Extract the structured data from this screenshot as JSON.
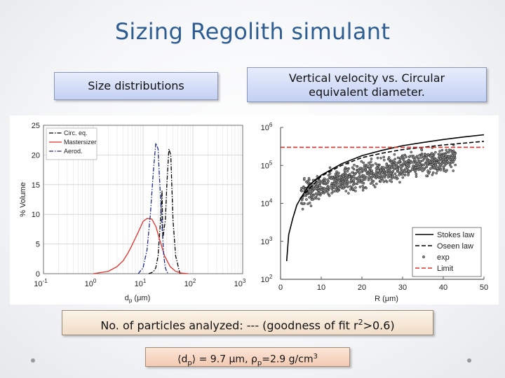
{
  "slide": {
    "title": "Sizing Regolith simulant",
    "box_left": "Size distributions",
    "box_right_line1": "Vertical velocity vs. Circular",
    "box_right_line2": "equivalent diameter.",
    "box_particles_prefix": "No. of particles analyzed: --- (goodness of fit r",
    "box_particles_sup": "2",
    "box_particles_suffix": ">0.6)",
    "formula_lhs_open": "⟨d",
    "formula_lhs_sub": "p",
    "formula_lhs_close": "⟩ = 9.7 μm,  ρ",
    "formula_rho_sub": "p",
    "formula_rhs": "=2.9 g/cm",
    "formula_rhs_sup": "3"
  },
  "chart_data": [
    {
      "type": "line",
      "ylabel": "% Volume",
      "xlabel_main": "d",
      "xlabel_sub": "p",
      "xlabel_unit": " (μm)",
      "xscale": "log",
      "xlim": [
        0.1,
        1000
      ],
      "ylim": [
        0,
        25
      ],
      "x_tick_bases": [
        "10",
        "10",
        "10",
        "10",
        "10"
      ],
      "x_tick_exps": [
        "-1",
        "0",
        "1",
        "2",
        "3"
      ],
      "x_tick_values": [
        0.1,
        1,
        10,
        100,
        1000
      ],
      "y_ticks": [
        0,
        5,
        10,
        15,
        20,
        25
      ],
      "legend": [
        "Circ. eq.",
        "Mastersizer",
        "Aerod."
      ],
      "legend_position": "top-left",
      "grid": true,
      "series": [
        {
          "name": "Circ. eq.",
          "color": "#000000",
          "dash": "dashdot",
          "x": [
            13,
            16,
            18,
            20,
            22,
            24,
            25,
            28,
            30,
            33,
            36,
            38,
            40,
            45,
            55
          ],
          "y": [
            0,
            0.3,
            1,
            3,
            8,
            14,
            6,
            9,
            15,
            21,
            20,
            14,
            9,
            3,
            0
          ]
        },
        {
          "name": "Mastersizer",
          "color": "#e0302a",
          "dash": "solid",
          "x": [
            1,
            2,
            3,
            4,
            5,
            6,
            8,
            10,
            12,
            15,
            18,
            22,
            27,
            35,
            45,
            60,
            80
          ],
          "y": [
            0,
            0.4,
            1.2,
            2.2,
            3.5,
            4.8,
            7,
            8.8,
            9.3,
            9.2,
            8,
            5.5,
            3,
            1.2,
            0.4,
            0.1,
            0
          ]
        },
        {
          "name": "Aerod.",
          "color": "#1f2a8a",
          "dash": "dashdot",
          "x": [
            8,
            10,
            12,
            14,
            16,
            18,
            20,
            22,
            24,
            26,
            28,
            30,
            33
          ],
          "y": [
            0,
            1,
            4,
            10,
            17,
            22,
            21,
            14,
            8,
            3,
            1,
            0.3,
            0
          ]
        }
      ]
    },
    {
      "type": "scatter",
      "xlabel_main": "R",
      "xlabel_unit": " (μm)",
      "yscale": "log",
      "xlim": [
        0,
        50
      ],
      "ylim": [
        100,
        1000000
      ],
      "x_ticks": [
        0,
        10,
        20,
        30,
        40,
        50
      ],
      "y_tick_bases": [
        "10",
        "10",
        "10",
        "10",
        "10"
      ],
      "y_tick_exps": [
        "2",
        "3",
        "4",
        "5",
        "6"
      ],
      "y_tick_values": [
        100,
        1000,
        10000,
        100000,
        1000000
      ],
      "legend": [
        "Stokes law",
        "Oseen law",
        "exp",
        "Limit"
      ],
      "legend_position": "bottom-right",
      "grid": false,
      "series": [
        {
          "name": "Stokes law",
          "color": "#000000",
          "dash": "solid",
          "x": [
            1.5,
            2,
            3,
            4,
            5,
            7,
            10,
            15,
            20,
            25,
            30,
            35,
            40,
            45,
            50
          ],
          "y": [
            300,
            1500,
            4000,
            9000,
            14000,
            30000,
            55000,
            110000,
            180000,
            250000,
            330000,
            400000,
            480000,
            560000,
            640000
          ]
        },
        {
          "name": "Oseen law",
          "color": "#000000",
          "dash": "dashed",
          "x": [
            5,
            10,
            15,
            20,
            25,
            30,
            35,
            40,
            45,
            50
          ],
          "y": [
            14000,
            52000,
            100000,
            160000,
            210000,
            260000,
            300000,
            345000,
            385000,
            430000
          ]
        },
        {
          "name": "exp",
          "color": "#555555",
          "marker": "o",
          "x_range": [
            5,
            43
          ],
          "y_start": 12000,
          "y_end": 150000
        },
        {
          "name": "Limit",
          "color": "#e0302a",
          "dash": "dashed",
          "x": [
            0,
            50
          ],
          "y": [
            300000,
            300000
          ]
        }
      ]
    }
  ]
}
